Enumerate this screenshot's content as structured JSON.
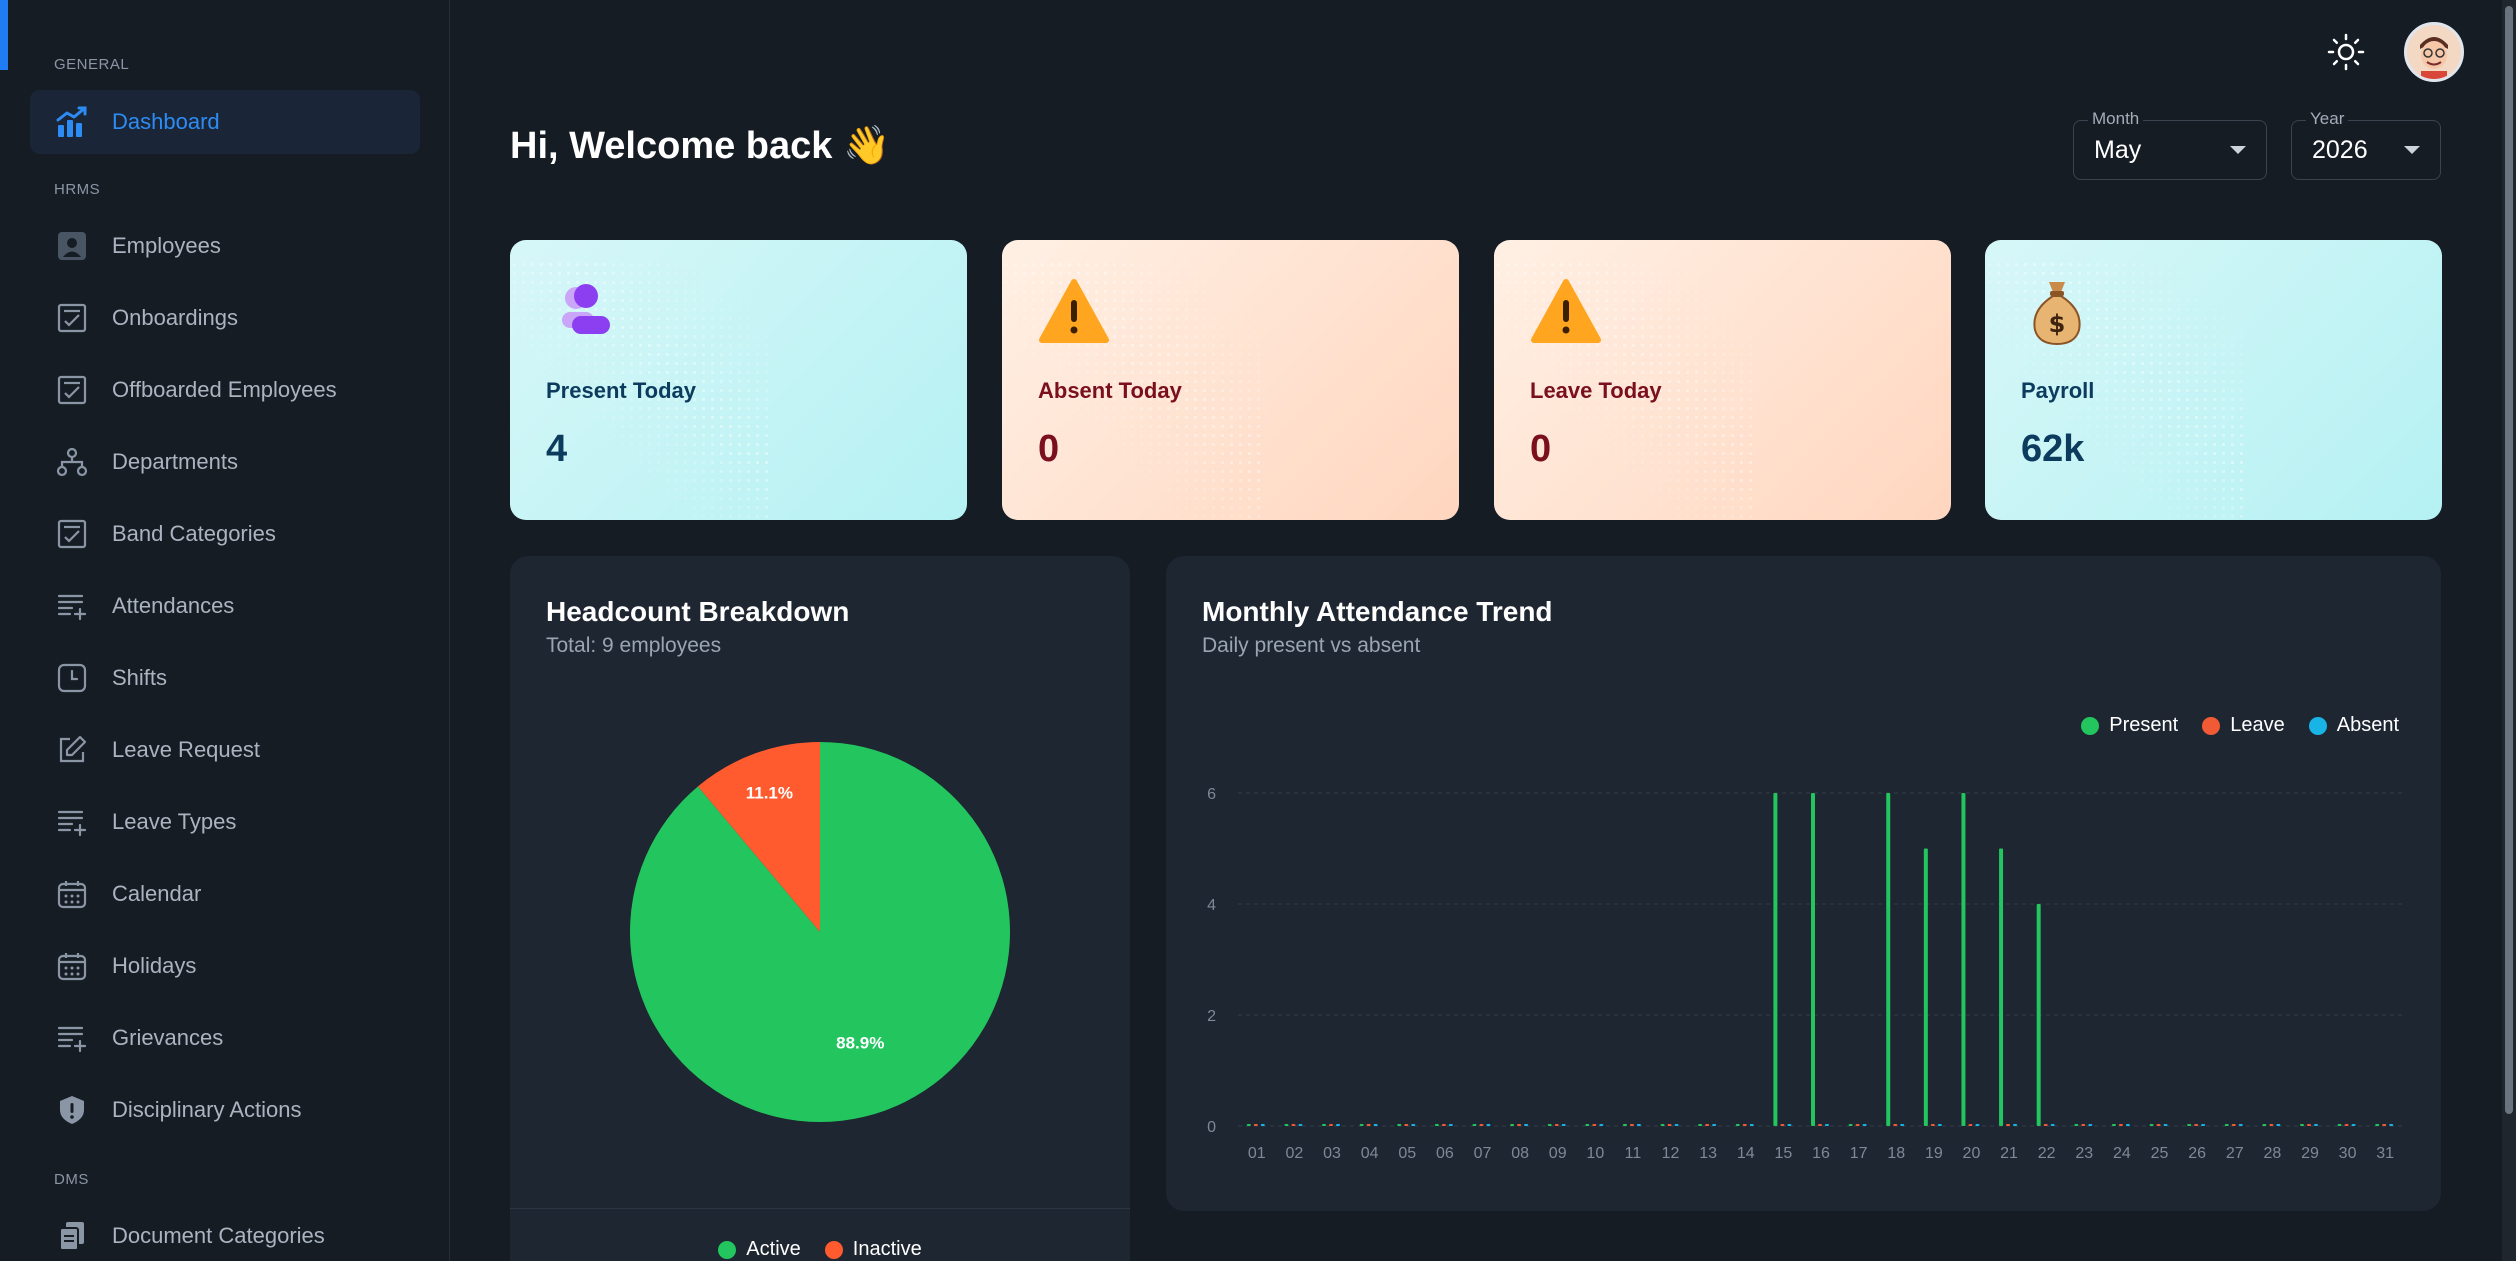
{
  "sidebar": {
    "sections": [
      {
        "label": "GENERAL"
      },
      {
        "label": "HRMS"
      },
      {
        "label": "DMS"
      }
    ],
    "items": [
      {
        "label": "Dashboard",
        "icon": "dashboard-chart-icon",
        "active": true
      },
      {
        "label": "Employees",
        "icon": "employee-badge-icon"
      },
      {
        "label": "Onboardings",
        "icon": "checklist-icon"
      },
      {
        "label": "Offboarded Employees",
        "icon": "checklist-icon"
      },
      {
        "label": "Departments",
        "icon": "hierarchy-icon"
      },
      {
        "label": "Band Categories",
        "icon": "checklist-icon"
      },
      {
        "label": "Attendances",
        "icon": "list-add-icon"
      },
      {
        "label": "Shifts",
        "icon": "clock-icon"
      },
      {
        "label": "Leave Request",
        "icon": "edit-icon"
      },
      {
        "label": "Leave Types",
        "icon": "list-add-icon"
      },
      {
        "label": "Calendar",
        "icon": "calendar-icon"
      },
      {
        "label": "Holidays",
        "icon": "calendar-icon"
      },
      {
        "label": "Grievances",
        "icon": "list-add-icon"
      },
      {
        "label": "Disciplinary Actions",
        "icon": "shield-alert-icon"
      },
      {
        "label": "Document Categories",
        "icon": "documents-icon"
      }
    ]
  },
  "header": {
    "welcome": "Hi, Welcome back 👋",
    "month": {
      "label": "Month",
      "value": "May"
    },
    "year": {
      "label": "Year",
      "value": "2026"
    }
  },
  "stats": [
    {
      "label": "Present Today",
      "value": "4",
      "icon": "people-icon"
    },
    {
      "label": "Absent Today",
      "value": "0",
      "icon": "warning-icon"
    },
    {
      "label": "Leave Today",
      "value": "0",
      "icon": "warning-icon"
    },
    {
      "label": "Payroll",
      "value": "62k",
      "icon": "money-bag-icon"
    }
  ],
  "headcount": {
    "title": "Headcount Breakdown",
    "subtitle": "Total: 9 employees"
  },
  "attendance": {
    "title": "Monthly Attendance Trend",
    "subtitle": "Daily present vs absent"
  },
  "colors": {
    "present": "#22c55e",
    "leave": "#f15a35",
    "absent": "#18b4e6",
    "active": "#22c55e",
    "inactive": "#ff5b2e"
  },
  "chart_data": [
    {
      "type": "pie",
      "categories": [
        "Active",
        "Inactive"
      ],
      "values": [
        88.9,
        11.1
      ],
      "labels": [
        "88.9%",
        "11.1%"
      ],
      "legend": "bottom"
    },
    {
      "type": "bar",
      "categories": [
        "01",
        "02",
        "03",
        "04",
        "05",
        "06",
        "07",
        "08",
        "09",
        "10",
        "11",
        "12",
        "13",
        "14",
        "15",
        "16",
        "17",
        "18",
        "19",
        "20",
        "21",
        "22",
        "23",
        "24",
        "25",
        "26",
        "27",
        "28",
        "29",
        "30",
        "31"
      ],
      "series": [
        {
          "name": "Present",
          "values": [
            0,
            0,
            0,
            0,
            0,
            0,
            0,
            0,
            0,
            0,
            0,
            0,
            0,
            0,
            6,
            6,
            0,
            6,
            5,
            6,
            5,
            4,
            0,
            0,
            0,
            0,
            0,
            0,
            0,
            0,
            0
          ]
        },
        {
          "name": "Leave",
          "values": [
            0,
            0,
            0,
            0,
            0,
            0,
            0,
            0,
            0,
            0,
            0,
            0,
            0,
            0,
            0,
            0,
            0,
            0,
            0,
            0,
            0,
            0,
            0,
            0,
            0,
            0,
            0,
            0,
            0,
            0,
            0
          ]
        },
        {
          "name": "Absent",
          "values": [
            0,
            0,
            0,
            0,
            0,
            0,
            0,
            0,
            0,
            0,
            0,
            0,
            0,
            0,
            0,
            0,
            0,
            0,
            0,
            0,
            0,
            0,
            0,
            0,
            0,
            0,
            0,
            0,
            0,
            0,
            0
          ]
        }
      ],
      "yticks": [
        0,
        2,
        4,
        6
      ],
      "ylim": [
        0,
        6
      ],
      "grid": true,
      "legend": "top-right"
    }
  ]
}
